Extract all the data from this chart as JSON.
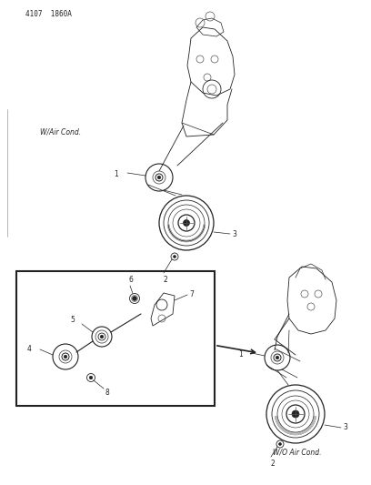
{
  "background_color": "#ffffff",
  "page_id": "4107  1860A",
  "top_label_w_air": "W/Air Cond.",
  "bottom_label_no_air": "W/O Air Cond.",
  "fig_width": 4.08,
  "fig_height": 5.33,
  "dpi": 100,
  "color_dark": "#222222",
  "color_mid": "#555555",
  "color_light": "#999999"
}
